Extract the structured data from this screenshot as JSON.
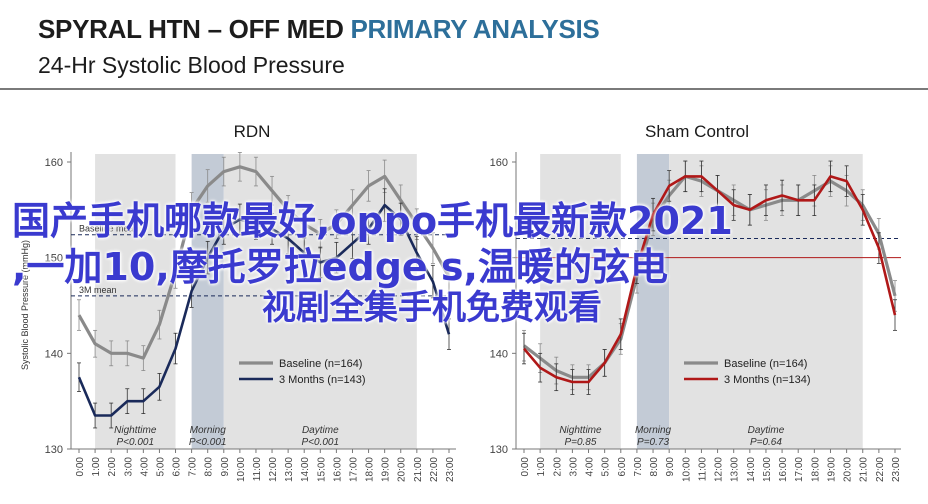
{
  "header": {
    "title_part1": "SPYRAL HTN – OFF MED ",
    "title_part2": "PRIMARY ANALYSIS",
    "subtitle": "24-Hr Systolic Blood Pressure"
  },
  "overlay": {
    "line1": "国产手机哪款最好,oppo手机最新款2021",
    "line2": ",一加10,摩托罗拉edge s,温暖的弦电",
    "line3": "视剧全集手机免费观看"
  },
  "colors": {
    "baseline": "#8a8a8a",
    "rdn_3m": "#1a2a5a",
    "sham_3m": "#b01818",
    "nightshade": "#e2e2e2",
    "morningshade": "#c3cbd6",
    "title_accent": "#2d6f9a"
  },
  "chart_data": [
    {
      "type": "line",
      "title": "RDN",
      "ylabel": "Systolic  Blood Pressure (mmHg)",
      "ylim": [
        130,
        161
      ],
      "yticks": [
        130,
        140,
        150,
        160
      ],
      "xlim": [
        0,
        23
      ],
      "xticks": [
        "0:00",
        "1:00",
        "2:00",
        "3:00",
        "4:00",
        "5:00",
        "6:00",
        "7:00",
        "8:00",
        "9:00",
        "10:00",
        "11:00",
        "12:00",
        "13:00",
        "14:00",
        "15:00",
        "16:00",
        "17:00",
        "18:00",
        "19:00",
        "20:00",
        "21:00",
        "22:00",
        "23:00"
      ],
      "grid": false,
      "legend_position": "lower-right",
      "reference_lines": [
        {
          "label": "Baseline mean",
          "y": 152.4
        },
        {
          "label": "3M mean",
          "y": 146.0
        }
      ],
      "periods": [
        {
          "name": "Nighttime",
          "p": "P<0.001",
          "start": 1.0,
          "end": 6.0
        },
        {
          "name": "Morning",
          "p": "P<0.001",
          "start": 7.0,
          "end": 9.0
        },
        {
          "name": "Daytime",
          "p": "P<0.001",
          "start": 9.0,
          "end": 21.0
        }
      ],
      "series": [
        {
          "name": "Baseline (n=164)",
          "x": [
            0,
            1,
            2,
            3,
            4,
            5,
            6,
            7,
            8,
            9,
            10,
            11,
            12,
            13,
            14,
            15,
            16,
            17,
            18,
            19,
            20,
            21,
            22,
            23
          ],
          "y": [
            144.0,
            141.0,
            140.0,
            140.0,
            139.5,
            143.0,
            148.5,
            155.0,
            157.5,
            159.0,
            159.5,
            159.0,
            157.0,
            155.0,
            153.5,
            152.5,
            153.5,
            155.5,
            157.5,
            158.5,
            156.0,
            153.5,
            151.0,
            148.0
          ],
          "err": [
            1.6,
            1.4,
            1.3,
            1.3,
            1.3,
            1.5,
            1.7,
            1.8,
            1.7,
            1.5,
            1.5,
            1.5,
            1.5,
            1.5,
            1.5,
            1.5,
            1.5,
            1.6,
            1.6,
            1.7,
            1.6,
            1.6,
            1.6,
            1.7
          ]
        },
        {
          "name": "3 Months (n=143)",
          "x": [
            0,
            1,
            2,
            3,
            4,
            5,
            6,
            7,
            8,
            9,
            10,
            11,
            12,
            13,
            14,
            15,
            16,
            17,
            18,
            19,
            20,
            21,
            22,
            23
          ],
          "y": [
            137.5,
            133.5,
            133.5,
            135.0,
            135.0,
            136.5,
            140.5,
            146.5,
            150.0,
            153.0,
            154.0,
            153.5,
            153.0,
            152.0,
            150.5,
            149.5,
            150.0,
            151.5,
            153.0,
            155.5,
            154.0,
            150.5,
            147.5,
            142.0
          ],
          "err": [
            1.5,
            1.3,
            1.3,
            1.3,
            1.3,
            1.4,
            1.6,
            1.7,
            1.7,
            1.6,
            1.6,
            1.6,
            1.6,
            1.6,
            1.6,
            1.6,
            1.6,
            1.6,
            1.6,
            1.7,
            1.7,
            1.7,
            1.7,
            1.6
          ]
        }
      ]
    },
    {
      "type": "line",
      "title": "Sham Control",
      "ylim": [
        130,
        161
      ],
      "yticks": [
        130,
        140,
        150,
        160
      ],
      "xlim": [
        0,
        23
      ],
      "xticks": [
        "0:00",
        "1:00",
        "2:00",
        "3:00",
        "4:00",
        "5:00",
        "6:00",
        "7:00",
        "8:00",
        "9:00",
        "10:00",
        "11:00",
        "12:00",
        "13:00",
        "14:00",
        "15:00",
        "16:00",
        "17:00",
        "18:00",
        "19:00",
        "20:00",
        "21:00",
        "22:00",
        "23:00"
      ],
      "grid": false,
      "legend_position": "lower-right",
      "reference_lines": [
        {
          "label": "",
          "y": 152.0
        },
        {
          "label": "",
          "y": 150.0
        }
      ],
      "periods": [
        {
          "name": "Nighttime",
          "p": "P=0.85",
          "start": 1.0,
          "end": 6.0
        },
        {
          "name": "Morning",
          "p": "P=0.73",
          "start": 7.0,
          "end": 9.0
        },
        {
          "name": "Daytime",
          "p": "P=0.64",
          "start": 9.0,
          "end": 21.0
        }
      ],
      "series": [
        {
          "name": "Baseline (n=164)",
          "x": [
            0,
            1,
            2,
            3,
            4,
            5,
            6,
            7,
            8,
            9,
            10,
            11,
            12,
            13,
            14,
            15,
            16,
            17,
            18,
            19,
            20,
            21,
            22,
            23
          ],
          "y": [
            140.8,
            139.5,
            138.2,
            137.5,
            137.5,
            139.0,
            141.5,
            148.0,
            154.0,
            156.5,
            158.5,
            158.0,
            157.0,
            156.0,
            155.0,
            155.5,
            156.0,
            156.0,
            157.0,
            158.0,
            157.0,
            155.5,
            152.5,
            146.0
          ],
          "err": [
            1.6,
            1.5,
            1.4,
            1.3,
            1.3,
            1.4,
            1.6,
            1.7,
            1.7,
            1.6,
            1.6,
            1.6,
            1.6,
            1.6,
            1.6,
            1.6,
            1.6,
            1.6,
            1.6,
            1.6,
            1.6,
            1.6,
            1.6,
            1.6
          ]
        },
        {
          "name": "3 Months (n=134)",
          "x": [
            0,
            1,
            2,
            3,
            4,
            5,
            6,
            7,
            8,
            9,
            10,
            11,
            12,
            13,
            14,
            15,
            16,
            17,
            18,
            19,
            20,
            21,
            22,
            23
          ],
          "y": [
            140.5,
            138.5,
            137.5,
            137.0,
            137.0,
            139.0,
            142.0,
            149.0,
            154.5,
            157.5,
            158.5,
            158.5,
            157.0,
            155.5,
            155.0,
            156.0,
            156.5,
            156.0,
            156.0,
            158.5,
            158.0,
            155.0,
            151.0,
            144.0
          ],
          "err": [
            1.6,
            1.5,
            1.4,
            1.3,
            1.3,
            1.4,
            1.6,
            1.7,
            1.7,
            1.6,
            1.6,
            1.6,
            1.6,
            1.6,
            1.6,
            1.6,
            1.6,
            1.6,
            1.6,
            1.6,
            1.6,
            1.6,
            1.6,
            1.6
          ]
        }
      ]
    }
  ]
}
